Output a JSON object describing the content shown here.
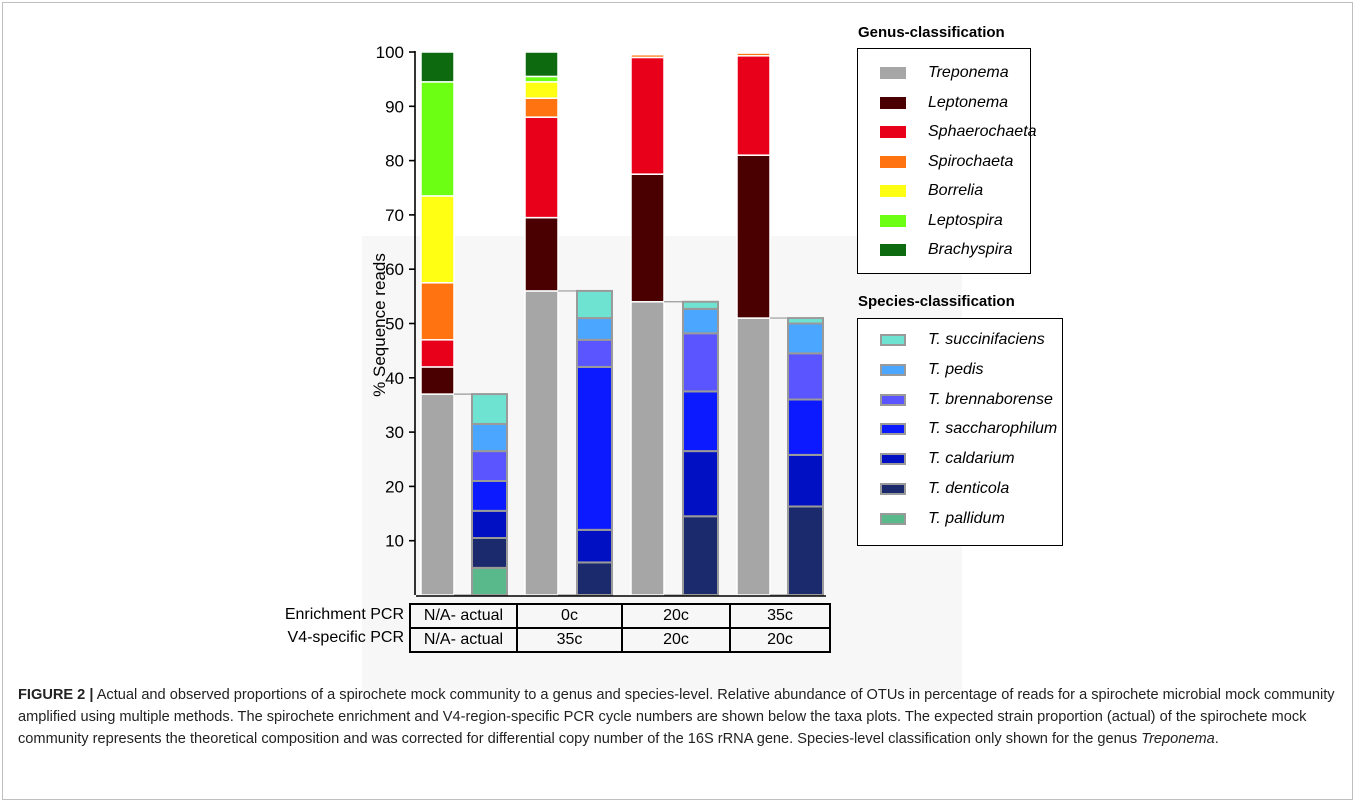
{
  "chart_data": {
    "type": "bar",
    "stacked": true,
    "ylabel": "% Sequence reads",
    "ylim": [
      0,
      100
    ],
    "yticks": [
      10,
      20,
      30,
      40,
      50,
      60,
      70,
      80,
      90,
      100
    ],
    "genus_bars": [
      {
        "condition": "N/A- actual",
        "segments": [
          {
            "taxon": "Treponema",
            "value": 37
          },
          {
            "taxon": "Leptonema",
            "value": 5
          },
          {
            "taxon": "Sphaerochaeta",
            "value": 5
          },
          {
            "taxon": "Spirochaeta",
            "value": 10.5
          },
          {
            "taxon": "Borrelia",
            "value": 16
          },
          {
            "taxon": "Leptospira",
            "value": 21
          },
          {
            "taxon": "Brachyspira",
            "value": 5.5
          }
        ]
      },
      {
        "condition": "0c / 35c",
        "segments": [
          {
            "taxon": "Treponema",
            "value": 56
          },
          {
            "taxon": "Leptonema",
            "value": 13.5
          },
          {
            "taxon": "Sphaerochaeta",
            "value": 18.5
          },
          {
            "taxon": "Spirochaeta",
            "value": 3.5
          },
          {
            "taxon": "Borrelia",
            "value": 3
          },
          {
            "taxon": "Leptospira",
            "value": 1
          },
          {
            "taxon": "Brachyspira",
            "value": 4.5
          }
        ]
      },
      {
        "condition": "20c / 20c",
        "segments": [
          {
            "taxon": "Treponema",
            "value": 54
          },
          {
            "taxon": "Leptonema",
            "value": 23.5
          },
          {
            "taxon": "Sphaerochaeta",
            "value": 21.5
          },
          {
            "taxon": "Spirochaeta",
            "value": 0.5
          },
          {
            "taxon": "Borrelia",
            "value": 0
          },
          {
            "taxon": "Leptospira",
            "value": 0
          },
          {
            "taxon": "Brachyspira",
            "value": 0
          }
        ]
      },
      {
        "condition": "35c / 20c",
        "segments": [
          {
            "taxon": "Treponema",
            "value": 51
          },
          {
            "taxon": "Leptonema",
            "value": 30
          },
          {
            "taxon": "Sphaerochaeta",
            "value": 18.3
          },
          {
            "taxon": "Spirochaeta",
            "value": 0.5
          },
          {
            "taxon": "Borrelia",
            "value": 0
          },
          {
            "taxon": "Leptospira",
            "value": 0
          },
          {
            "taxon": "Brachyspira",
            "value": 0
          }
        ]
      }
    ],
    "species_bars": [
      {
        "condition": "N/A- actual",
        "segments": [
          {
            "taxon": "T. pallidum",
            "value": 5
          },
          {
            "taxon": "T. denticola",
            "value": 5.5
          },
          {
            "taxon": "T. caldarium",
            "value": 5
          },
          {
            "taxon": "T. saccharophilum",
            "value": 5.5
          },
          {
            "taxon": "T. brennaborense",
            "value": 5.5
          },
          {
            "taxon": "T. pedis",
            "value": 5
          },
          {
            "taxon": "T. succinifaciens",
            "value": 5.5
          }
        ]
      },
      {
        "condition": "0c / 35c",
        "segments": [
          {
            "taxon": "T. pallidum",
            "value": 0
          },
          {
            "taxon": "T. denticola",
            "value": 6
          },
          {
            "taxon": "T. caldarium",
            "value": 6
          },
          {
            "taxon": "T. saccharophilum",
            "value": 30
          },
          {
            "taxon": "T. brennaborense",
            "value": 5
          },
          {
            "taxon": "T. pedis",
            "value": 4
          },
          {
            "taxon": "T. succinifaciens",
            "value": 5
          }
        ]
      },
      {
        "condition": "20c / 20c",
        "segments": [
          {
            "taxon": "T. pallidum",
            "value": 0
          },
          {
            "taxon": "T. denticola",
            "value": 14.5
          },
          {
            "taxon": "T. caldarium",
            "value": 12
          },
          {
            "taxon": "T. saccharophilum",
            "value": 11
          },
          {
            "taxon": "T. brennaborense",
            "value": 10.7
          },
          {
            "taxon": "T. pedis",
            "value": 4.5
          },
          {
            "taxon": "T. succinifaciens",
            "value": 1.3
          }
        ]
      },
      {
        "condition": "35c / 20c",
        "segments": [
          {
            "taxon": "T. pallidum",
            "value": 0
          },
          {
            "taxon": "T. denticola",
            "value": 16.3
          },
          {
            "taxon": "T. caldarium",
            "value": 9.5
          },
          {
            "taxon": "T. saccharophilum",
            "value": 10.2
          },
          {
            "taxon": "T. brennaborense",
            "value": 8.5
          },
          {
            "taxon": "T. pedis",
            "value": 5.5
          },
          {
            "taxon": "T. succinifaciens",
            "value": 1
          }
        ]
      }
    ]
  },
  "legend": {
    "genus_title": "Genus-classification",
    "genus": [
      {
        "label": "Treponema",
        "color": "#a6a6a6"
      },
      {
        "label": "Leptonema",
        "color": "#4a0000"
      },
      {
        "label": "Sphaerochaeta",
        "color": "#e8001a"
      },
      {
        "label": "Spirochaeta",
        "color": "#ff7411"
      },
      {
        "label": "Borrelia",
        "color": "#ffff14"
      },
      {
        "label": "Leptospira",
        "color": "#6cff14"
      },
      {
        "label": "Brachyspira",
        "color": "#0e6a0e"
      }
    ],
    "species_title": "Species-classification",
    "species": [
      {
        "label": "T. succinifaciens",
        "color": "#6fe3d2"
      },
      {
        "label": "T. pedis",
        "color": "#4aa6ff"
      },
      {
        "label": "T. brennaborense",
        "color": "#5a55ff"
      },
      {
        "label": "T. saccharophilum",
        "color": "#0b1aff"
      },
      {
        "label": "T. caldarium",
        "color": "#0010c2"
      },
      {
        "label": "T. denticola",
        "color": "#1a2a6c"
      },
      {
        "label": "T. pallidum",
        "color": "#5ab98a"
      }
    ]
  },
  "pcr_table": {
    "row_labels": [
      "Enrichment PCR",
      "V4-specific PCR"
    ],
    "enrichment": [
      "N/A- actual",
      "0c",
      "20c",
      "35c"
    ],
    "v4": [
      "N/A- actual",
      "35c",
      "20c",
      "20c"
    ]
  },
  "caption": {
    "label": "FIGURE 2 |",
    "text_before_italic": " Actual and observed proportions of a spirochete mock community to a genus and species-level. Relative abundance of OTUs in percentage of reads for a spirochete microbial mock community amplified using multiple methods. The spirochete enrichment and V4-region-specific PCR cycle numbers are shown below the taxa plots. The expected strain proportion (actual) of the spirochete mock community represents the theoretical composition and was corrected for differential copy number of the 16S rRNA gene. Species-level classification only shown for the genus ",
    "italic": "Treponema",
    "text_after_italic": "."
  }
}
